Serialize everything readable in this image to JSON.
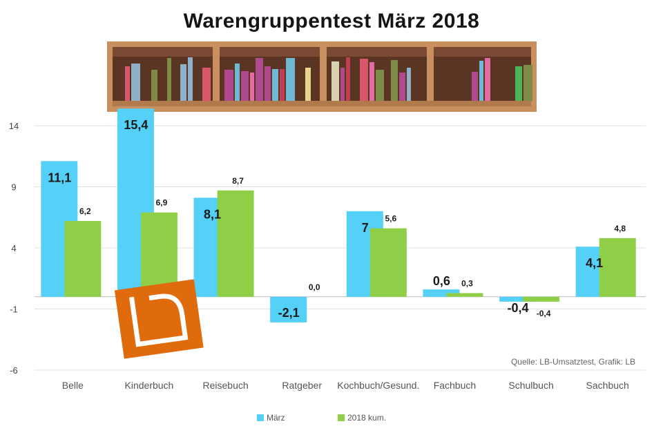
{
  "chart_data": {
    "type": "bar",
    "title": "Warengruppentest März 2018",
    "categories": [
      "Belle",
      "Kinderbuch",
      "Reisebuch",
      "Ratgeber",
      "Kochbuch/Gesund.",
      "Fachbuch",
      "Schulbuch",
      "Sachbuch"
    ],
    "series": [
      {
        "name": "März",
        "color": "#55d0f7",
        "values": [
          11.1,
          15.4,
          8.1,
          -2.1,
          7,
          0.6,
          -0.4,
          4.1
        ],
        "labels": [
          "11,1",
          "15,4",
          "8,1",
          "-2,1",
          "7",
          "0,6",
          "-0,4",
          "4,1"
        ]
      },
      {
        "name": "2018 kum.",
        "color": "#8fce47",
        "values": [
          6.2,
          6.9,
          8.7,
          0,
          5.6,
          0.3,
          -0.4,
          4.8
        ],
        "labels": [
          "6,2",
          "6,9",
          "8,7",
          "0,0",
          "5,6",
          "0,3",
          "-0,4",
          "4,8"
        ]
      }
    ],
    "yticks": [
      14,
      9,
      4,
      -1,
      -6
    ],
    "ylim": [
      -6,
      14
    ],
    "grid": true,
    "legend_position": "bottom",
    "source": "Quelle: LB-Umsatztest, Grafik: LB"
  },
  "logo": {
    "text": "LB",
    "color": "#e06b0c"
  }
}
